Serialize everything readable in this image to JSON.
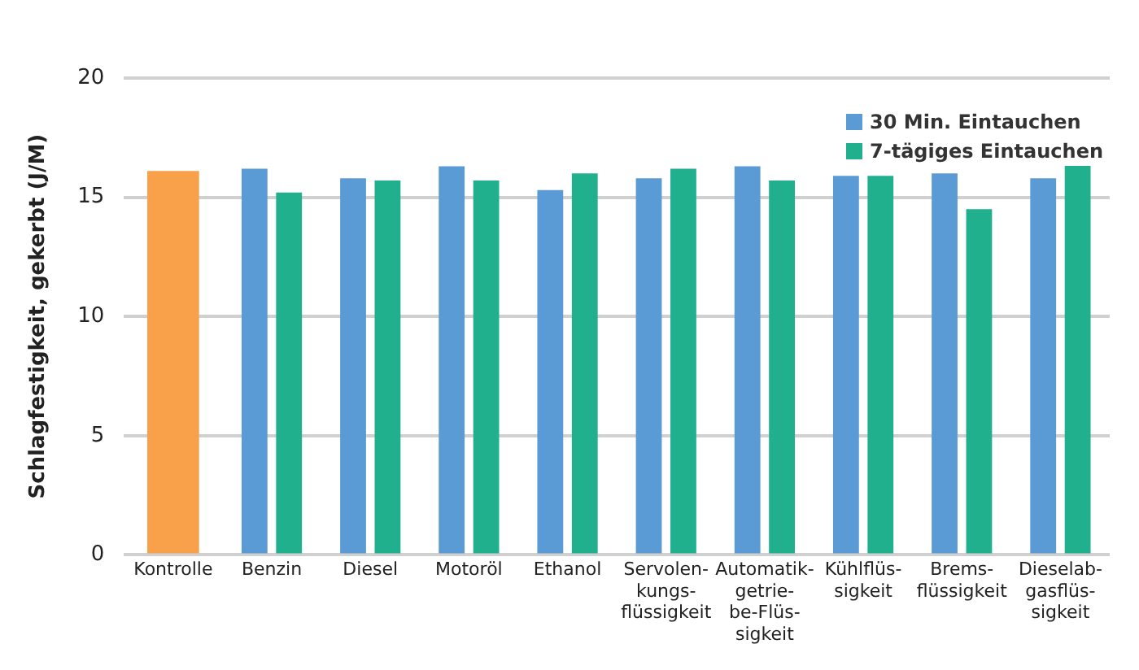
{
  "chart_data": {
    "type": "bar",
    "ylabel": "Schlagfestigkeit, gekerbt (J/M)",
    "categories": [
      "Kontrolle",
      "Benzin",
      "Diesel",
      "Motoröl",
      "Ethanol",
      "Servolen-\nkungs-\nflüssigkeit",
      "Automatik-\ngetrie-\nbe-Flüs-\nsigkeit",
      "Kühlflüs-\nsigkeit",
      "Brems-\nflüssigkeit",
      "Dieselab-\ngasflüs-\nsigkeit"
    ],
    "series": [
      {
        "color": "#f9a04a",
        "values": [
          16.1,
          null,
          null,
          null,
          null,
          null,
          null,
          null,
          null,
          null
        ]
      },
      {
        "name": "30 Min. Eintauchen",
        "color": "#5b9bd5",
        "values": [
          null,
          16.2,
          15.8,
          16.3,
          15.3,
          15.8,
          16.3,
          15.9,
          16.0,
          15.8
        ]
      },
      {
        "name": "7-tägiges Eintauchen",
        "color": "#20b08e",
        "values": [
          null,
          15.2,
          15.7,
          15.7,
          16.0,
          16.2,
          15.7,
          15.9,
          14.5,
          16.4
        ]
      }
    ],
    "ylim": [
      0,
      20
    ],
    "yticks": [
      0,
      5,
      10,
      15,
      20
    ],
    "grid": "y",
    "legend": "top right"
  }
}
